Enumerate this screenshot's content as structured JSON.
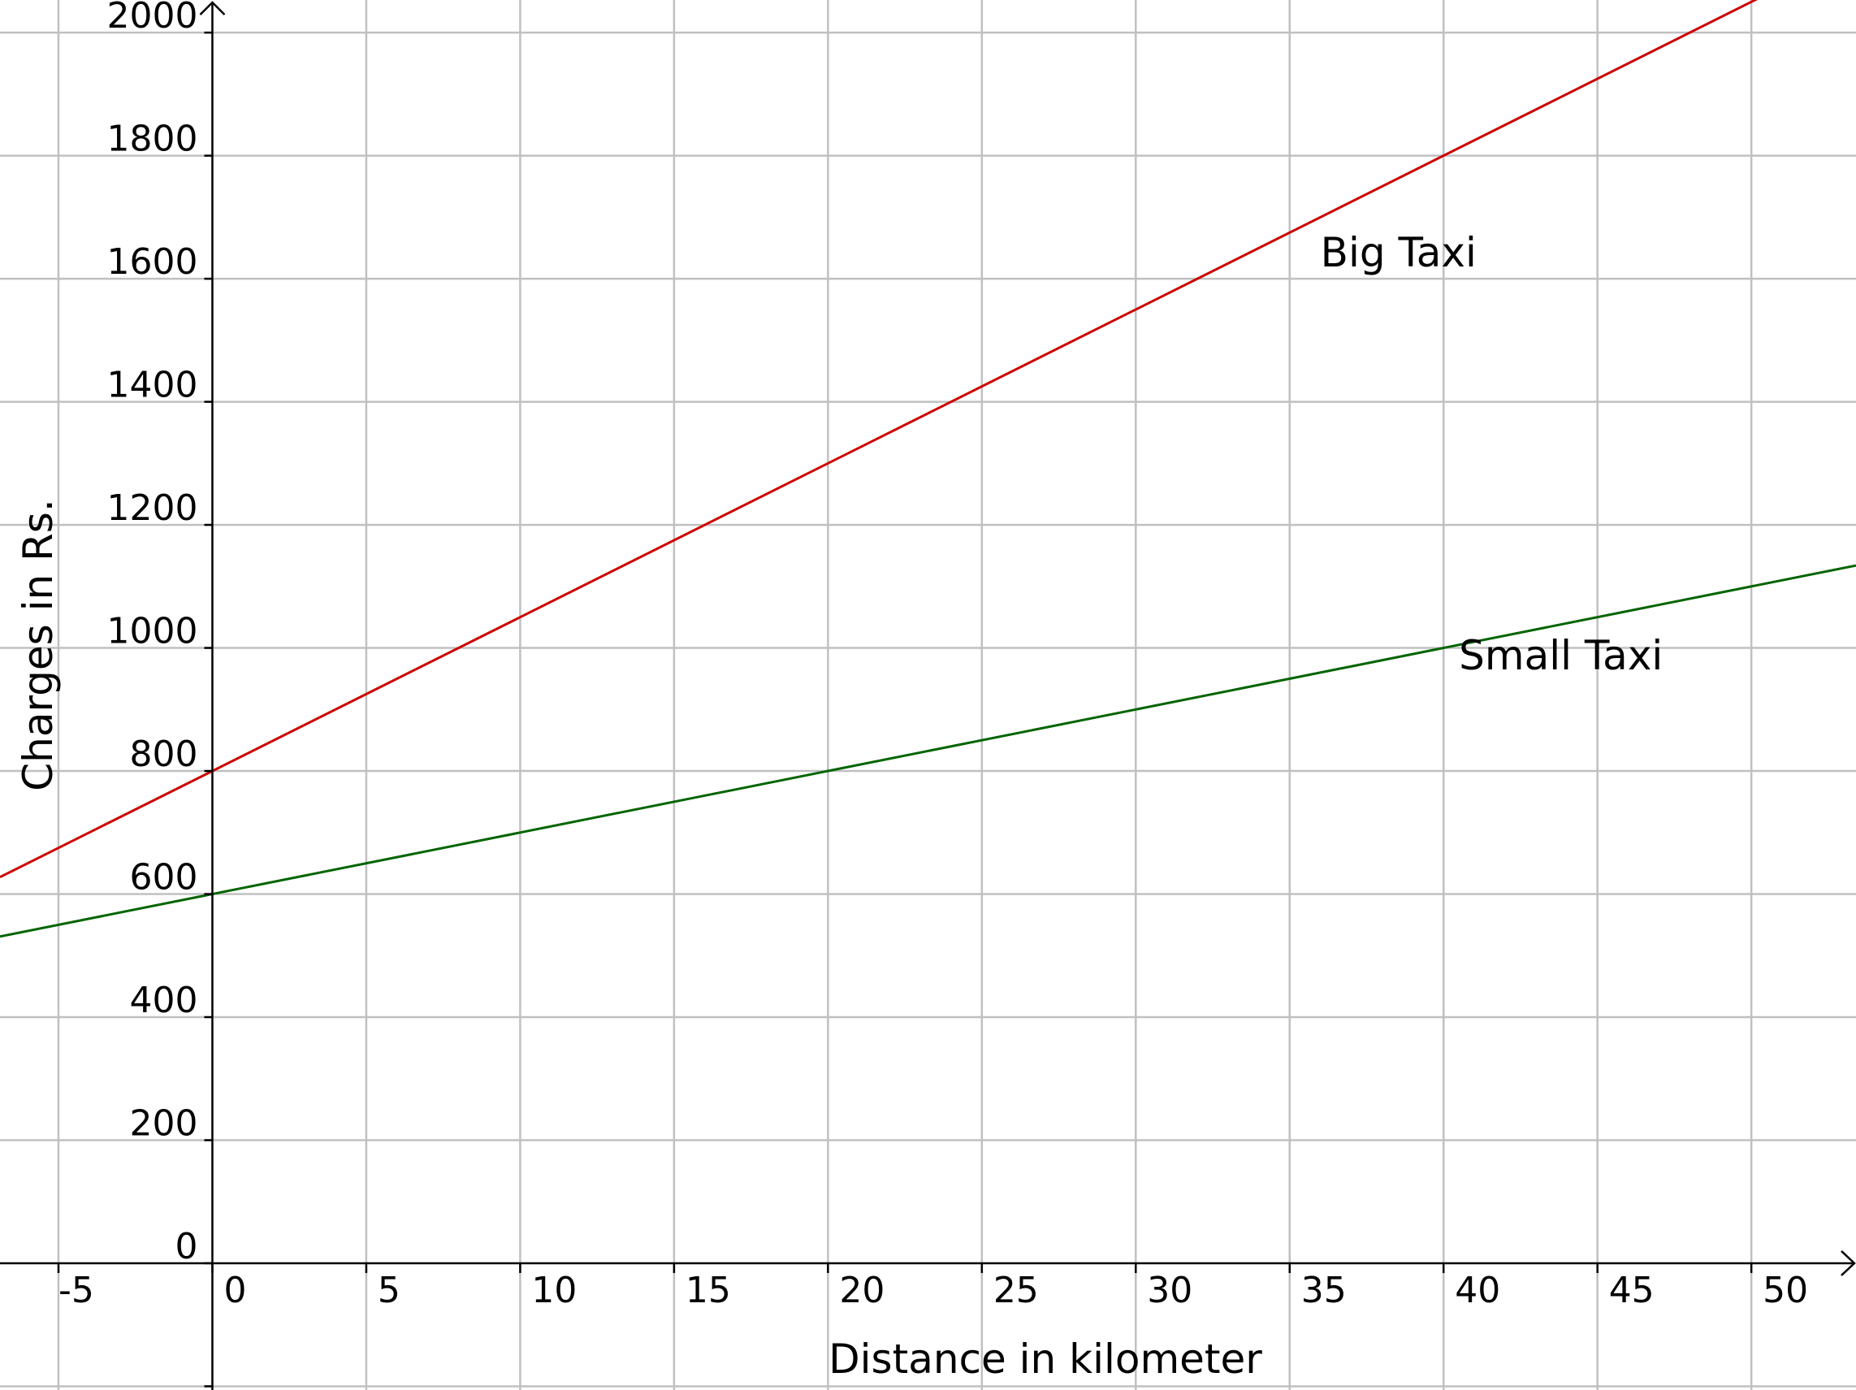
{
  "chart_data": {
    "type": "line",
    "xlabel": "Distance in kilometer",
    "ylabel": "Charges in Rs.",
    "xlim": [
      -6.9,
      53.4
    ],
    "ylim": [
      -206,
      2053
    ],
    "x_ticks": [
      -5,
      0,
      5,
      10,
      15,
      20,
      25,
      30,
      35,
      40,
      45,
      50
    ],
    "y_ticks": [
      0,
      200,
      400,
      600,
      800,
      1000,
      1200,
      1400,
      1600,
      1800,
      2000
    ],
    "grid": true,
    "series": [
      {
        "name": "Big Taxi",
        "color": "#cc0000",
        "x": [
          -6.9,
          53.4
        ],
        "y": [
          627.5,
          2135
        ],
        "label_at": [
          36,
          1620
        ]
      },
      {
        "name": "Small Taxi",
        "color": "#006400",
        "x": [
          -6.9,
          53.4
        ],
        "y": [
          531,
          1134
        ],
        "label_at": [
          40.5,
          965
        ]
      }
    ]
  }
}
